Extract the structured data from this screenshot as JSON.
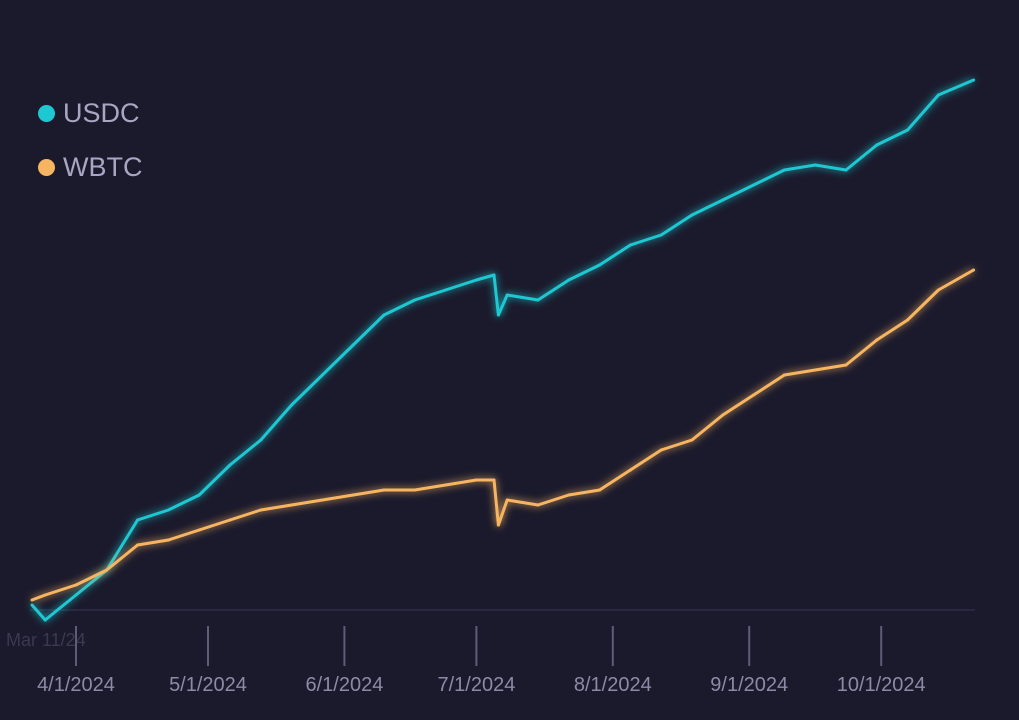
{
  "chart_data": {
    "type": "line",
    "title": "",
    "xlabel": "",
    "ylabel": "",
    "grid": false,
    "legend_position": "top-left",
    "hover_label": "Mar 11/24",
    "x_ticks": [
      "4/1/2024",
      "5/1/2024",
      "6/1/2024",
      "7/1/2024",
      "8/1/2024",
      "9/1/2024",
      "10/1/2024"
    ],
    "x": [
      "2024-03-22",
      "2024-03-25",
      "2024-04-01",
      "2024-04-08",
      "2024-04-15",
      "2024-04-22",
      "2024-04-29",
      "2024-05-06",
      "2024-05-13",
      "2024-05-20",
      "2024-05-27",
      "2024-06-03",
      "2024-06-10",
      "2024-06-17",
      "2024-06-24",
      "2024-07-01",
      "2024-07-05",
      "2024-07-06",
      "2024-07-08",
      "2024-07-15",
      "2024-07-22",
      "2024-07-29",
      "2024-08-05",
      "2024-08-12",
      "2024-08-19",
      "2024-08-26",
      "2024-09-02",
      "2024-09-09",
      "2024-09-16",
      "2024-09-23",
      "2024-09-30",
      "2024-10-07",
      "2024-10-14",
      "2024-10-22"
    ],
    "series": [
      {
        "name": "USDC",
        "color": "#1ec8d2",
        "values": [
          1,
          -2,
          3,
          8,
          18,
          20,
          23,
          29,
          34,
          41,
          47,
          53,
          59,
          62,
          64,
          66,
          67,
          59,
          63,
          62,
          66,
          69,
          73,
          75,
          79,
          82,
          85,
          88,
          89,
          88,
          93,
          96,
          103,
          106
        ]
      },
      {
        "name": "WBTC",
        "color": "#f7b562",
        "values": [
          2,
          3,
          5,
          8,
          13,
          14,
          16,
          18,
          20,
          21,
          22,
          23,
          24,
          24,
          25,
          26,
          26,
          17,
          22,
          21,
          23,
          24,
          28,
          32,
          34,
          39,
          43,
          47,
          48,
          49,
          54,
          58,
          64,
          68
        ]
      }
    ]
  }
}
